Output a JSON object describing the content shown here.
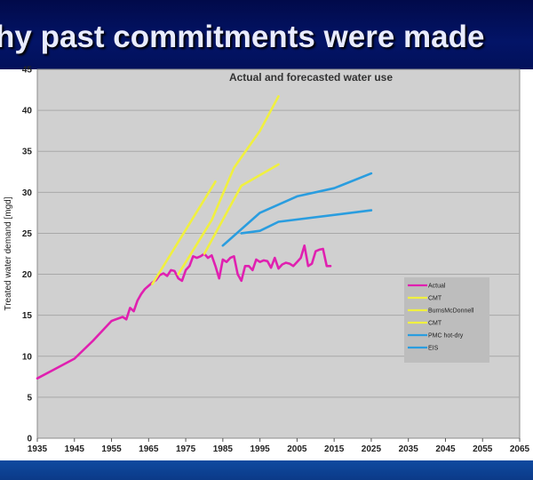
{
  "slide": {
    "title": "hy past commitments were made"
  },
  "colors": {
    "title_bg": "#031467",
    "bottom_bar": "#0d44a0",
    "plot_bg": "#d0d0d0",
    "legend_bg": "#bdbdbd"
  },
  "chart_data": {
    "type": "line",
    "title": "Actual and forecasted water use",
    "ylabel": "Treated water demand [mgd]",
    "xlabel": "",
    "xlim": [
      1935,
      2065
    ],
    "ylim": [
      0,
      45
    ],
    "xticks": [
      "1935",
      "1945",
      "1955",
      "1965",
      "1975",
      "1985",
      "1995",
      "2005",
      "2015",
      "2025",
      "2035",
      "2045",
      "2055",
      "2065"
    ],
    "yticks": [
      "0",
      "5",
      "10",
      "15",
      "20",
      "25",
      "30",
      "35",
      "40",
      "45"
    ],
    "grid": true,
    "legend_position": "right",
    "series": [
      {
        "name": "Actual",
        "color": "#e020b0",
        "x": [
          1935,
          1940,
          1945,
          1950,
          1955,
          1958,
          1959,
          1960,
          1961,
          1962,
          1963,
          1964,
          1965,
          1966,
          1967,
          1968,
          1969,
          1970,
          1971,
          1972,
          1973,
          1974,
          1975,
          1976,
          1977,
          1978,
          1979,
          1980,
          1981,
          1982,
          1983,
          1984,
          1985,
          1986,
          1987,
          1988,
          1989,
          1990,
          1991,
          1992,
          1993,
          1994,
          1995,
          1996,
          1997,
          1998,
          1999,
          2000,
          2001,
          2002,
          2003,
          2004,
          2005,
          2006,
          2007,
          2008,
          2009,
          2010,
          2011,
          2012,
          2013,
          2014
        ],
        "y": [
          7.3,
          8.5,
          9.7,
          11.9,
          14.3,
          14.8,
          14.5,
          15.9,
          15.5,
          16.8,
          17.6,
          18.2,
          18.6,
          19.0,
          19.3,
          19.9,
          20.1,
          19.8,
          20.5,
          20.4,
          19.5,
          19.2,
          20.5,
          21.0,
          22.2,
          22.0,
          22.2,
          22.5,
          22.0,
          22.3,
          21.0,
          19.5,
          21.8,
          21.5,
          22.0,
          22.2,
          20.0,
          19.2,
          21.0,
          21.0,
          20.5,
          21.8,
          21.5,
          21.7,
          21.6,
          20.8,
          22.0,
          20.7,
          21.2,
          21.4,
          21.3,
          21.0,
          21.5,
          22.0,
          23.5,
          21.0,
          21.3,
          22.8,
          23.0,
          23.1,
          21.0,
          21.0
        ]
      },
      {
        "name": "CMT",
        "color": "#f0f040",
        "x": [
          1966,
          1983
        ],
        "y": [
          18.8,
          31.3
        ]
      },
      {
        "name": "BurnsMcDonnell",
        "color": "#f0f040",
        "x": [
          1973,
          1982,
          1988,
          1995,
          2000
        ],
        "y": [
          20.0,
          26.6,
          33.0,
          37.5,
          41.7
        ]
      },
      {
        "name": "CMT",
        "color": "#f0f040",
        "x": [
          1980,
          1990,
          2000
        ],
        "y": [
          22.5,
          30.8,
          33.4
        ]
      },
      {
        "name": "PMC hot-dry",
        "color": "#2a9ddf",
        "x": [
          1985,
          1995,
          2005,
          2015,
          2025
        ],
        "y": [
          23.5,
          27.5,
          29.5,
          30.5,
          32.3
        ]
      },
      {
        "name": "EIS",
        "color": "#2a9ddf",
        "x": [
          1990,
          1995,
          2000,
          2025
        ],
        "y": [
          25.0,
          25.3,
          26.4,
          27.8
        ]
      }
    ]
  }
}
